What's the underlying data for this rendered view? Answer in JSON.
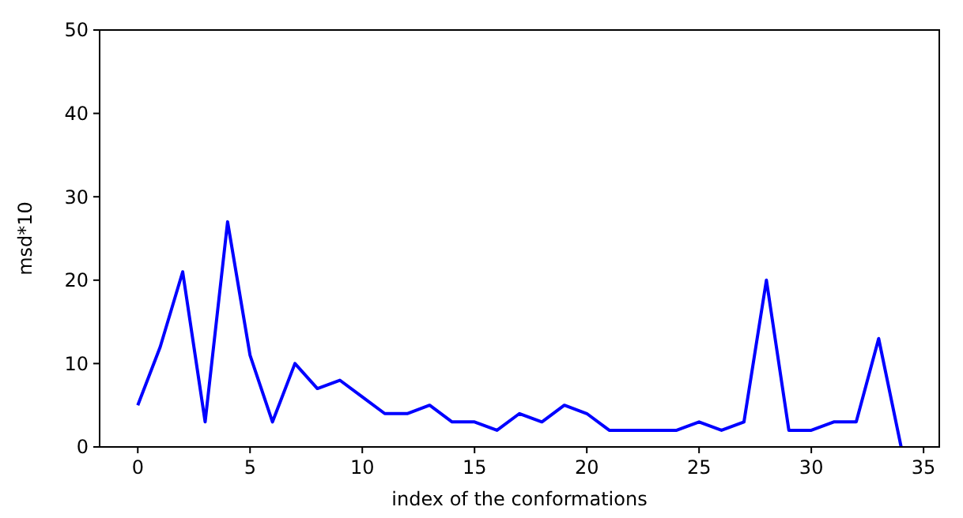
{
  "chart_data": {
    "type": "line",
    "xlabel": "index of the conformations",
    "ylabel": "msd*10",
    "x": [
      0,
      1,
      2,
      3,
      4,
      5,
      6,
      7,
      8,
      9,
      10,
      11,
      12,
      13,
      14,
      15,
      16,
      17,
      18,
      19,
      20,
      21,
      22,
      23,
      24,
      25,
      26,
      27,
      28,
      29,
      30,
      31,
      32,
      33,
      34
    ],
    "series": [
      {
        "color": "#0000ff",
        "values": [
          5,
          12,
          21,
          3,
          27,
          11,
          3,
          10,
          7,
          8,
          6,
          4,
          4,
          5,
          3,
          3,
          2,
          4,
          3,
          5,
          4,
          2,
          2,
          2,
          2,
          3,
          2,
          3,
          20,
          2,
          2,
          3,
          3,
          13,
          0
        ]
      }
    ],
    "xlim": [
      -1.7,
      35.7
    ],
    "ylim": [
      0,
      50
    ],
    "xticks": [
      0,
      5,
      10,
      15,
      20,
      25,
      30,
      35
    ],
    "yticks": [
      0,
      10,
      20,
      30,
      40,
      50
    ]
  }
}
